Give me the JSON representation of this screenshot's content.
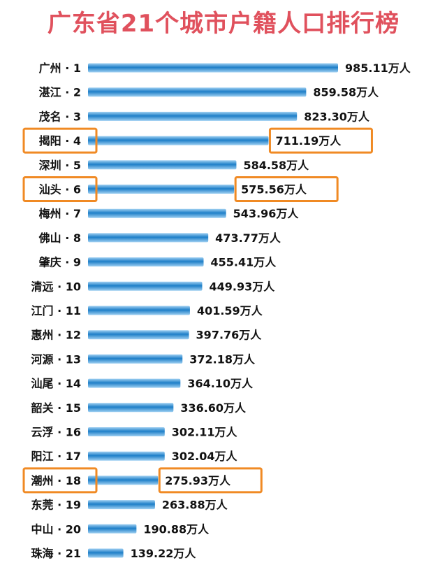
{
  "chart_data": {
    "type": "bar",
    "orientation": "horizontal",
    "title": "广东省21个城市户籍人口排行榜",
    "categories": [
      "广州 · 1",
      "湛江 · 2",
      "茂名 · 3",
      "揭阳 · 4",
      "深圳 · 5",
      "汕头 · 6",
      "梅州 · 7",
      "佛山 · 8",
      "肇庆 · 9",
      "清远 · 10",
      "江门 · 11",
      "惠州 · 12",
      "河源 · 13",
      "汕尾 · 14",
      "韶关 · 15",
      "云浮 · 16",
      "阳江 · 17",
      "潮州 · 18",
      "东莞 · 19",
      "中山 · 20",
      "珠海 · 21"
    ],
    "values": [
      985.11,
      859.58,
      823.3,
      711.19,
      584.58,
      575.56,
      543.96,
      473.77,
      455.41,
      449.93,
      401.59,
      397.76,
      372.18,
      364.1,
      336.6,
      302.11,
      302.04,
      275.93,
      263.88,
      190.88,
      139.22
    ],
    "value_labels": [
      "985.11万人",
      "859.58万人",
      "823.30万人",
      "711.19万人",
      "584.58万人",
      "575.56万人",
      "543.96万人",
      "473.77万人",
      "455.41万人",
      "449.93万人",
      "401.59万人",
      "397.76万人",
      "372.18万人",
      "364.10万人",
      "336.60万人",
      "302.11万人",
      "302.04万人",
      "275.93万人",
      "263.88万人",
      "190.88万人",
      "139.22万人"
    ],
    "highlighted": [
      3,
      5,
      17
    ],
    "colors": {
      "bar_light": "#9fd0f2",
      "bar_dark": "#1e7fc8",
      "highlight_box": "#f08a24",
      "title": "#e0515d"
    }
  }
}
